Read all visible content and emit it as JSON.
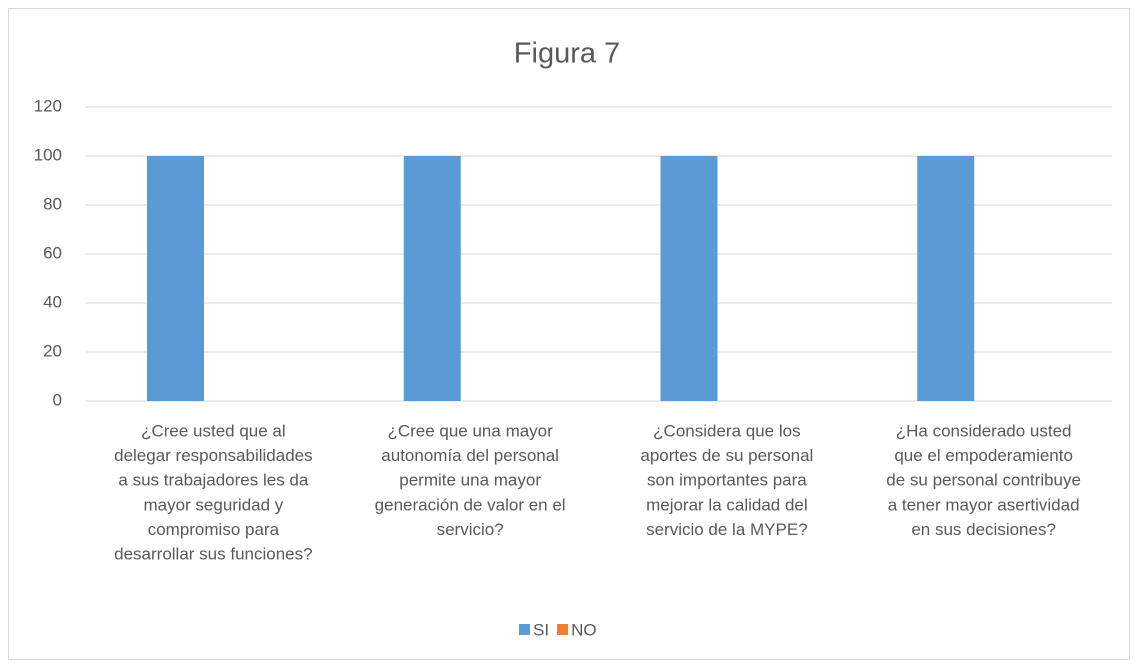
{
  "chart_data": {
    "type": "bar",
    "title": "Figura  7",
    "categories": [
      [
        "¿Cree usted que al",
        "delegar responsabilidades",
        "a sus trabajadores les da",
        "mayor seguridad y",
        "compromiso para",
        "desarrollar sus funciones?"
      ],
      [
        "¿Cree que una mayor",
        "autonomía del personal",
        "permite una mayor",
        "generación de valor en el",
        "servicio?"
      ],
      [
        "¿Considera que los",
        "aportes de su personal",
        "son importantes para",
        "mejorar la calidad del",
        "servicio de la MYPE?"
      ],
      [
        "¿Ha considerado usted",
        "que el empoderamiento",
        "de su personal contribuye",
        "a tener mayor asertividad",
        "en sus decisiones?"
      ]
    ],
    "series": [
      {
        "name": "SI",
        "color": "#5b9bd5",
        "values": [
          100,
          100,
          100,
          100
        ]
      },
      {
        "name": "NO",
        "color": "#ed7d31",
        "values": [
          0,
          0,
          0,
          0
        ]
      }
    ],
    "ylim": [
      0,
      120
    ],
    "yticks": [
      0,
      20,
      40,
      60,
      80,
      100,
      120
    ],
    "grid": true,
    "legend": "bottom"
  }
}
